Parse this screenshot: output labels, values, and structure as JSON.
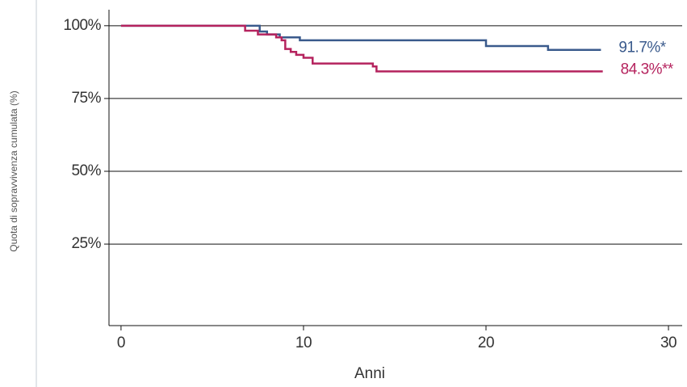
{
  "chart_data": {
    "type": "step",
    "y_label": "Quota di sopravvivenza cumulata (%)",
    "x_label": "Anni",
    "xlim": [
      -0.66,
      30.75
    ],
    "xticks": [
      0,
      10,
      20,
      30
    ],
    "ylim": [
      -3,
      105.5
    ],
    "yticks": [
      {
        "value": 25,
        "label": "25%"
      },
      {
        "value": 50,
        "label": "50%"
      },
      {
        "value": 75,
        "label": "75%"
      },
      {
        "value": 100,
        "label": "100%"
      }
    ],
    "grid": true,
    "series": [
      {
        "color": "#3a5a8c",
        "label": "91.7%*",
        "x": [
          0,
          7.6,
          8.0,
          8.7,
          9.8,
          20.0,
          23.4,
          26.3
        ],
        "values": [
          100,
          98,
          97,
          96,
          95,
          93,
          91.7,
          91.7
        ]
      },
      {
        "color": "#b5235e",
        "label": "84.3%**",
        "x": [
          0,
          6.8,
          7.5,
          8.5,
          8.8,
          9.0,
          9.3,
          9.6,
          10.0,
          10.5,
          13.8,
          14.0,
          26.4
        ],
        "values": [
          100,
          98.3,
          97,
          96,
          95,
          92,
          91,
          90,
          89,
          87,
          86,
          84.3,
          84.3
        ]
      }
    ]
  }
}
